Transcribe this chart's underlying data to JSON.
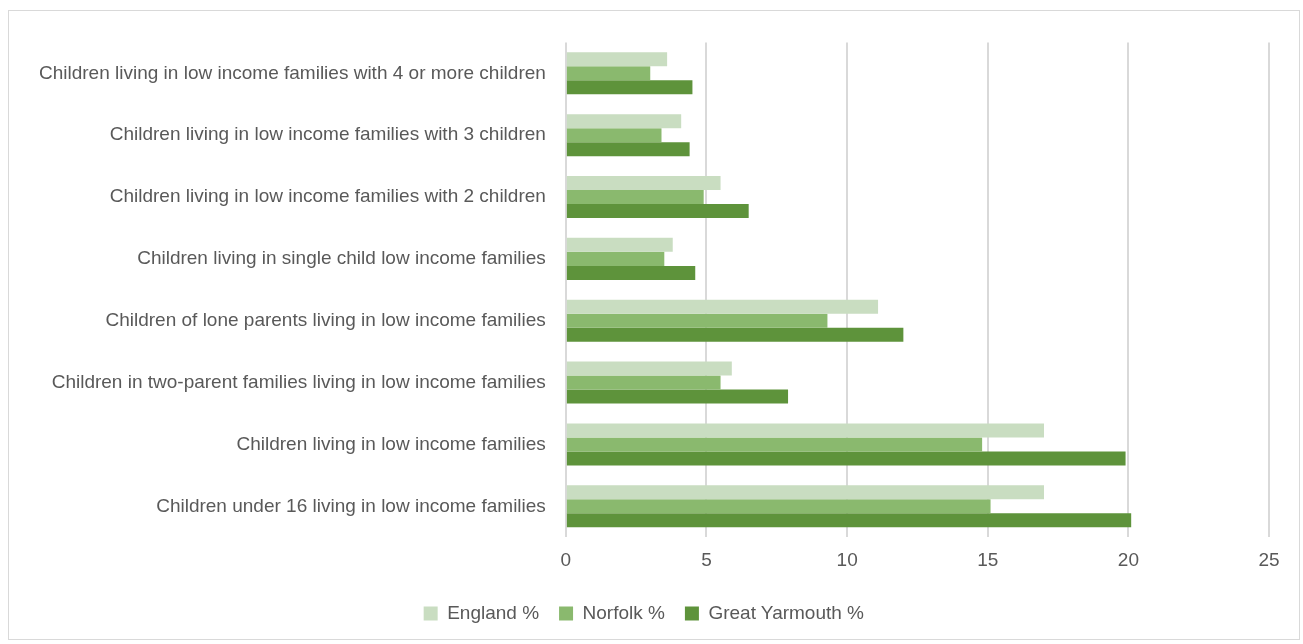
{
  "chart_data": {
    "type": "bar",
    "orientation": "horizontal",
    "categories": [
      "Children living in low income families with 4 or more children",
      "Children living in low income families with 3 children",
      "Children living in low income families with 2 children",
      "Children living in single child low income families",
      "Children of lone parents living in low income families",
      "Children in two-parent families living in low income families",
      "Children living in low income families",
      "Children under 16 living in low income families"
    ],
    "series": [
      {
        "name": "England %",
        "color": "#c9ddc1",
        "values": [
          3.6,
          4.1,
          5.5,
          3.8,
          11.1,
          5.9,
          17.0,
          17.0
        ]
      },
      {
        "name": "Norfolk %",
        "color": "#8ab96e",
        "values": [
          3.0,
          3.4,
          4.9,
          3.5,
          9.3,
          5.5,
          14.8,
          15.1
        ]
      },
      {
        "name": "Great Yarmouth %",
        "color": "#5e933b",
        "values": [
          4.5,
          4.4,
          6.5,
          4.6,
          12.0,
          7.9,
          19.9,
          20.1
        ]
      }
    ],
    "xlim": [
      0,
      25
    ],
    "xticks": [
      0,
      5,
      10,
      15,
      20,
      25
    ],
    "grid": "x",
    "legend": "bottom"
  }
}
